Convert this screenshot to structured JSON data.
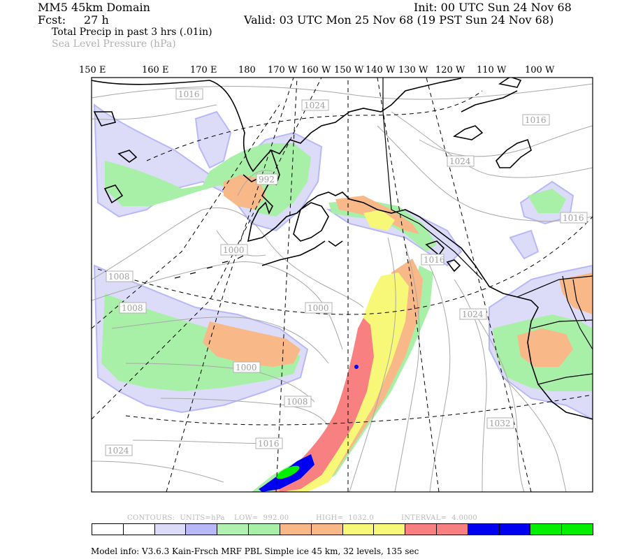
{
  "header": {
    "domain": "MM5 45km Domain",
    "fcst_label": "Fcst:",
    "fcst_value": "27 h",
    "init": "Init: 00 UTC Sun 24 Nov 68",
    "valid": "Valid: 03 UTC Mon 25 Nov 68 (19 PST Sun 24 Nov 68)",
    "field1": "Total Precip in past 3 hrs (.01in)",
    "field2": "Sea Level Pressure (hPa)"
  },
  "longitudes": [
    "150 E",
    "160 E",
    "170 E",
    "180",
    "170 W",
    "160 W",
    "150 W",
    "140 W",
    "130 W",
    "120 W",
    "110 W",
    "100 W"
  ],
  "isobar_labels": [
    "1016",
    "1024",
    "1016",
    "1024",
    "1016",
    "992",
    "1000",
    "1008",
    "1008",
    "1016",
    "1000",
    "1024",
    "1000",
    "1008",
    "1032",
    "1016",
    "1024"
  ],
  "contours": {
    "units_label": "CONTOURS:",
    "units": "UNITS=hPa",
    "low_label": "LOW=",
    "low": "992.00",
    "high_label": "HIGH=",
    "high": "1032.0",
    "interval_label": "INTERVAL=",
    "interval": "4.0000"
  },
  "colorbar": {
    "colors": [
      "#ffffff",
      "#ffffff",
      "#dcdcf8",
      "#b8b8f8",
      "#b0f0b0",
      "#a8f0a8",
      "#f8b888",
      "#f8b888",
      "#f8f878",
      "#f8f878",
      "#f88080",
      "#f88080",
      "#0000f0",
      "#0000f0",
      "#00f000",
      "#00f000"
    ]
  },
  "colors": {
    "precip_light": "#dcdcf8",
    "precip_lav": "#b8b8f8",
    "precip_green": "#a8f0a8",
    "precip_orange": "#f8b888",
    "precip_yellow": "#f8f878",
    "precip_red": "#f88080",
    "precip_blue": "#0000f0",
    "precip_bright_green": "#00f000",
    "isobar": "#a0a0a0"
  },
  "model_info": "Model info: V3.6.3 Kain-Frsch MRF PBL    Simple ice   45 km,  32 levels,  135 sec"
}
